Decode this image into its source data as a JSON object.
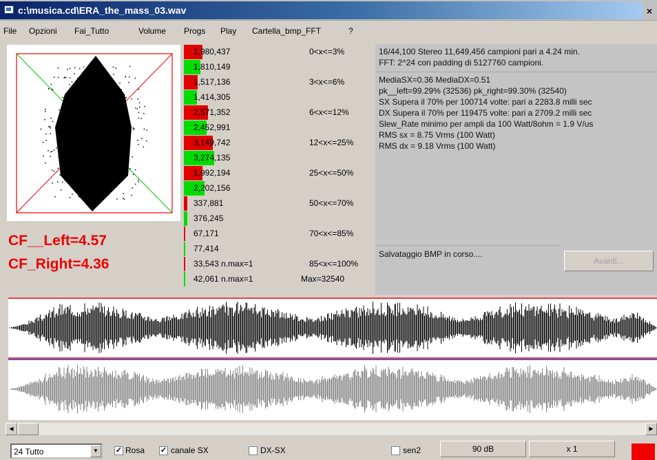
{
  "window": {
    "title": "c:\\musica.cd\\ERA_the_mass_03.wav",
    "close": "×"
  },
  "menu": [
    "File",
    "Opzioni",
    "Fai_Tutto",
    "Volume",
    "Progs",
    "Play",
    "Cartella_bmp_FFT",
    "?"
  ],
  "crest": {
    "left": "CF__Left=4.57",
    "right": "CF_Right=4.36"
  },
  "histogram": [
    {
      "value": "1,980,437",
      "color": "red",
      "count": 1980437,
      "range": "0<x<=3%"
    },
    {
      "value": "1,810,149",
      "color": "green",
      "count": 1810149,
      "range": ""
    },
    {
      "value": "1,517,136",
      "color": "red",
      "count": 1517136,
      "range": "3<x<=6%"
    },
    {
      "value": "1,414,305",
      "color": "green",
      "count": 1414305,
      "range": ""
    },
    {
      "value": "2,571,352",
      "color": "red",
      "count": 2571352,
      "range": "6<x<=12%"
    },
    {
      "value": "2,452,991",
      "color": "green",
      "count": 2452991,
      "range": ""
    },
    {
      "value": "3,149,742",
      "color": "red",
      "count": 3149742,
      "range": "12<x<=25%"
    },
    {
      "value": "3,274,135",
      "color": "green",
      "count": 3274135,
      "range": ""
    },
    {
      "value": "1,992,194",
      "color": "red",
      "count": 1992194,
      "range": "25<x<=50%"
    },
    {
      "value": "2,202,156",
      "color": "green",
      "count": 2202156,
      "range": ""
    },
    {
      "value": "337,881",
      "color": "red",
      "count": 337881,
      "range": "50<x<=70%"
    },
    {
      "value": "376,245",
      "color": "green",
      "count": 376245,
      "range": ""
    },
    {
      "value": "67,171",
      "color": "red",
      "count": 67171,
      "range": "70<x<=85%"
    },
    {
      "value": "77,414",
      "color": "green",
      "count": 77414,
      "range": ""
    },
    {
      "value": "33,543 n.max=1",
      "color": "red",
      "count": 33543,
      "range": "85<x<=100%"
    },
    {
      "value": "42,061 n.max=1",
      "color": "green",
      "count": 42061,
      "range": "Max=32540"
    }
  ],
  "info": {
    "line1": "16/44,100 Stereo 11,649,456 campioni pari a 4.24 min.",
    "line2": "FFT: 2^24 con padding di 5127760 campioni.",
    "stats": [
      "MediaSX=0.36  MediaDX=0.51",
      "pk__left=99.29% (32536)  pk_right=99.30% (32540)",
      "SX Supera il 70% per 100714 volte: pari a 2283.8 milli sec",
      "DX Supera il 70% per 119475 volte: pari a 2709.2 milli sec",
      "Slew_Rate minimo per ampli da 100 Watt/8ohm = 1.9 V/us",
      "RMS sx = 8.75 Vrms (100 Watt)",
      "RMS dx = 9.18 Vrms (100 Watt)"
    ],
    "status": "Salvataggio BMP in corso...."
  },
  "buttons": {
    "avanti": "Avanti...",
    "db": "90 dB",
    "zoom": "x 1"
  },
  "bottom": {
    "combo": "24 Tutto",
    "rosa": "Rosa",
    "canale": "canale SX",
    "dxsx": "DX-SX",
    "sen2": "sen2",
    "rosa_checked": "✓",
    "canale_checked": "✓"
  }
}
